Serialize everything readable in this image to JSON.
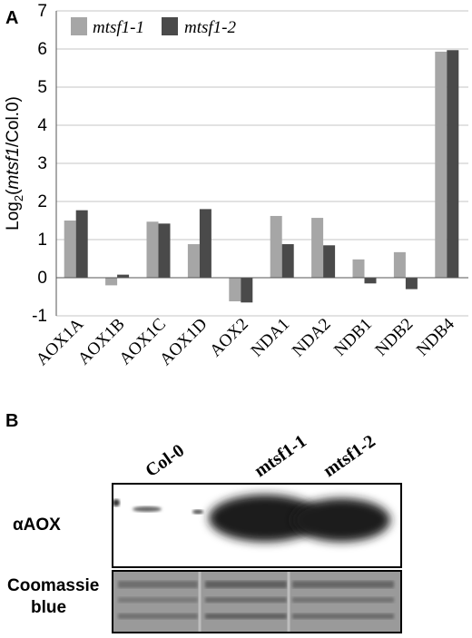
{
  "panel_a": {
    "label": "A"
  },
  "panel_b": {
    "label": "B",
    "lanes": [
      "Col-0",
      "mtsf1-1",
      "mtsf1-2"
    ],
    "blot_label": "αAOX",
    "loading_label_line1": "Coomassie",
    "loading_label_line2": "blue"
  },
  "colors": {
    "mtsf1_1": "#a6a6a6",
    "mtsf1_2": "#4a4a4a",
    "grid": "#d9d9d9",
    "axis": "#555555"
  },
  "chart_data": {
    "type": "bar",
    "title": "",
    "ylabel_prefix": "Log",
    "ylabel_sub": "2",
    "ylabel_open": "(",
    "ylabel_italic": "mtsf1",
    "ylabel_rest": "/Col.0)",
    "xlabel": "",
    "ylim": [
      -1,
      7
    ],
    "yticks": [
      -1,
      0,
      1,
      2,
      3,
      4,
      5,
      6,
      7
    ],
    "grid": true,
    "legend_position": "top-left",
    "categories": [
      "AOX1A",
      "AOX1B",
      "AOX1C",
      "AOX1D",
      "AOX2",
      "NDA1",
      "NDA2",
      "NDB1",
      "NDB2",
      "NDB4"
    ],
    "series": [
      {
        "name": "mtsf1-1",
        "values": [
          1.5,
          -0.2,
          1.47,
          0.88,
          -0.62,
          1.62,
          1.57,
          0.48,
          0.67,
          5.93
        ]
      },
      {
        "name": "mtsf1-2",
        "values": [
          1.77,
          0.08,
          1.42,
          1.8,
          -0.65,
          0.88,
          0.85,
          -0.15,
          -0.3,
          5.97
        ]
      }
    ]
  }
}
